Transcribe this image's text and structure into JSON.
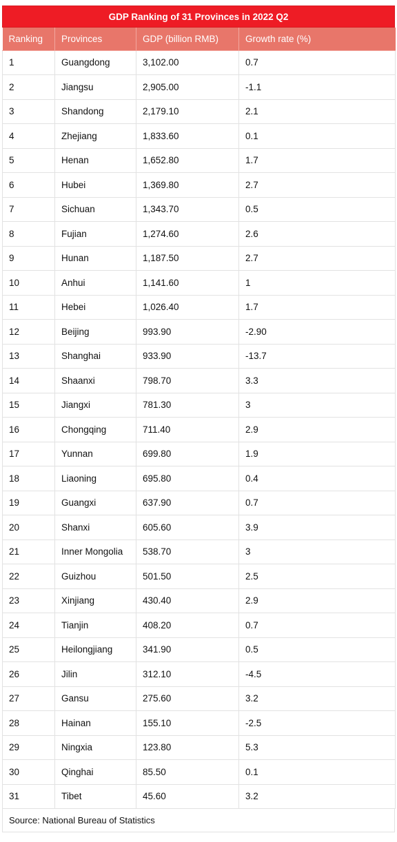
{
  "chart_data": {
    "type": "table",
    "title": "GDP Ranking of 31 Provinces in 2022 Q2",
    "columns": [
      "Ranking",
      "Provinces",
      "GDP (billion RMB)",
      "Growth rate (%)"
    ],
    "rows": [
      [
        "1",
        "Guangdong",
        "3,102.00",
        "0.7"
      ],
      [
        "2",
        "Jiangsu",
        "2,905.00",
        "-1.1"
      ],
      [
        "3",
        "Shandong",
        "2,179.10",
        "2.1"
      ],
      [
        "4",
        "Zhejiang",
        "1,833.60",
        "0.1"
      ],
      [
        "5",
        "Henan",
        "1,652.80",
        "1.7"
      ],
      [
        "6",
        "Hubei",
        "1,369.80",
        "2.7"
      ],
      [
        "7",
        "Sichuan",
        "1,343.70",
        "0.5"
      ],
      [
        "8",
        "Fujian",
        "1,274.60",
        "2.6"
      ],
      [
        "9",
        "Hunan",
        "1,187.50",
        "2.7"
      ],
      [
        "10",
        "Anhui",
        "1,141.60",
        "1"
      ],
      [
        "11",
        "Hebei",
        "1,026.40",
        "1.7"
      ],
      [
        "12",
        "Beijing",
        "993.90",
        "-2.90"
      ],
      [
        "13",
        "Shanghai",
        "933.90",
        "-13.7"
      ],
      [
        "14",
        "Shaanxi",
        "798.70",
        "3.3"
      ],
      [
        "15",
        "Jiangxi",
        "781.30",
        "3"
      ],
      [
        "16",
        "Chongqing",
        "711.40",
        "2.9"
      ],
      [
        "17",
        "Yunnan",
        "699.80",
        "1.9"
      ],
      [
        "18",
        "Liaoning",
        "695.80",
        "0.4"
      ],
      [
        "19",
        "Guangxi",
        "637.90",
        "0.7"
      ],
      [
        "20",
        "Shanxi",
        "605.60",
        "3.9"
      ],
      [
        "21",
        "Inner Mongolia",
        "538.70",
        "3"
      ],
      [
        "22",
        "Guizhou",
        "501.50",
        "2.5"
      ],
      [
        "23",
        "Xinjiang",
        "430.40",
        "2.9"
      ],
      [
        "24",
        "Tianjin",
        "408.20",
        "0.7"
      ],
      [
        "25",
        "Heilongjiang",
        "341.90",
        "0.5"
      ],
      [
        "26",
        "Jilin",
        "312.10",
        "-4.5"
      ],
      [
        "27",
        "Gansu",
        "275.60",
        "3.2"
      ],
      [
        "28",
        "Hainan",
        "155.10",
        "-2.5"
      ],
      [
        "29",
        "Ningxia",
        "123.80",
        "5.3"
      ],
      [
        "30",
        "Qinghai",
        "85.50",
        "0.1"
      ],
      [
        "31",
        "Tibet",
        "45.60",
        "3.2"
      ]
    ],
    "source": "Source: National Bureau of Statistics"
  },
  "colors": {
    "title_bg": "#ee1c25",
    "header_bg": "#e8766a",
    "border": "#e2e2e2"
  }
}
